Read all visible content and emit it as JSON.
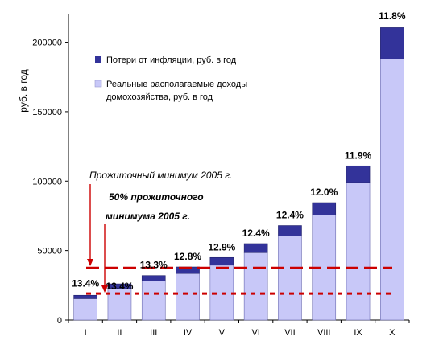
{
  "chart_data": {
    "type": "bar",
    "stacked": true,
    "categories": [
      "I",
      "II",
      "III",
      "IV",
      "V",
      "VI",
      "VII",
      "VIII",
      "IX",
      "X"
    ],
    "series": [
      {
        "name": "Реальные располагаемые доходы домохозяйства, руб. в год",
        "color": "#c8c8f8",
        "values": [
          15400,
          22500,
          28000,
          33500,
          39500,
          48500,
          60500,
          75500,
          99000,
          188000
        ]
      },
      {
        "name": "Потери от инфляции, руб. в год",
        "color": "#33339a",
        "values": [
          2400,
          3500,
          4000,
          4700,
          5500,
          6500,
          7500,
          9000,
          12000,
          22500
        ]
      }
    ],
    "data_labels": [
      "13.4%",
      "13.4%",
      "13.3%",
      "12.8%",
      "12.9%",
      "12.4%",
      "12.4%",
      "12.0%",
      "11.9%",
      "11.8%"
    ],
    "ylabel": "руб. в год",
    "ylim": [
      0,
      220000
    ],
    "yticks": [
      0,
      50000,
      100000,
      150000,
      200000
    ],
    "legend": [
      {
        "label": "Потери от инфляции, руб. в год",
        "color": "#33339a"
      },
      {
        "label_lines": [
          "Реальные располагаемые доходы",
          "домохозяйства, руб. в год"
        ],
        "color": "#c8c8f8"
      }
    ],
    "reference_lines": [
      {
        "value": 37500,
        "color": "#cc0000",
        "style": "dashed"
      },
      {
        "value": 19000,
        "color": "#cc0000",
        "style": "dotted"
      }
    ],
    "annotations": {
      "subsistence": "Прожиточный минимум 2005 г.",
      "half_subsistence_lines": [
        "50% прожиточного",
        "минимума 2005 г."
      ]
    },
    "grid": false
  }
}
